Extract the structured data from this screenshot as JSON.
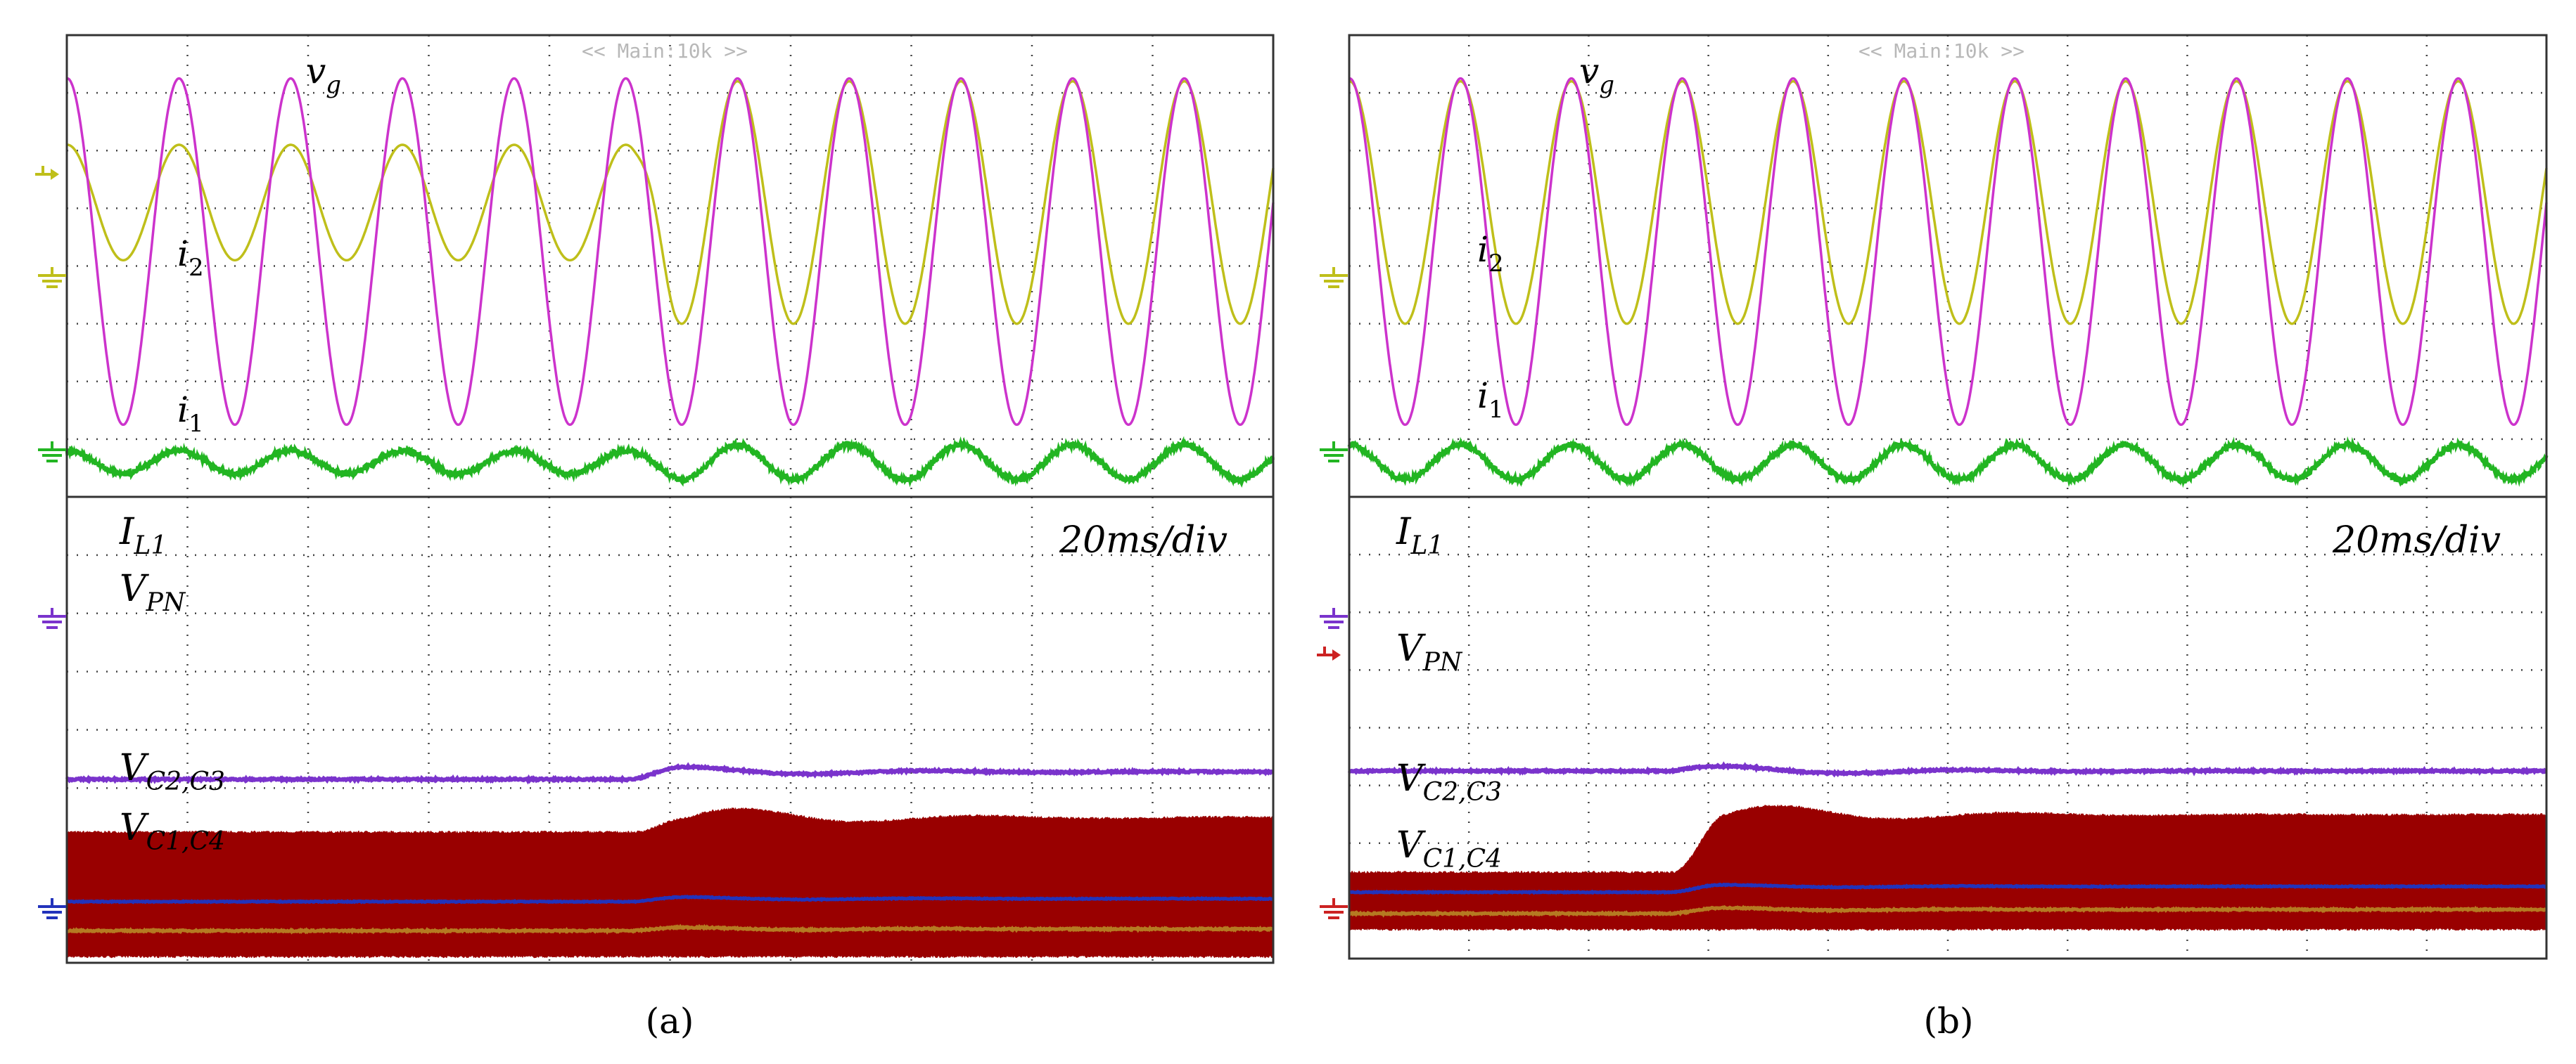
{
  "figure": {
    "panels": [
      {
        "caption": "(a)",
        "top_label": "<< Main:10k >>",
        "time_scale": "20ms/div",
        "labels": {
          "vg": {
            "base": "v",
            "sub": "g"
          },
          "i2": {
            "base": "i",
            "sub": "2"
          },
          "i1": {
            "base": "i",
            "sub": "1"
          },
          "IL1": {
            "base": "I",
            "sub": "L1"
          },
          "VPN": {
            "base": "V",
            "sub": "PN"
          },
          "VC23": {
            "base": "V",
            "sub": "C2,C3"
          },
          "VC14": {
            "base": "V",
            "sub": "C1,C4"
          }
        }
      },
      {
        "caption": "(b)",
        "top_label": "<< Main:10k >>",
        "time_scale": "20ms/div",
        "labels": {
          "vg": {
            "base": "v",
            "sub": "g"
          },
          "i2": {
            "base": "i",
            "sub": "2"
          },
          "i1": {
            "base": "i",
            "sub": "1"
          },
          "IL1": {
            "base": "I",
            "sub": "L1"
          },
          "VPN": {
            "base": "V",
            "sub": "PN"
          },
          "VC23": {
            "base": "V",
            "sub": "C2,C3"
          },
          "VC14": {
            "base": "V",
            "sub": "C1,C4"
          }
        }
      }
    ]
  },
  "chart_data": [
    {
      "type": "line",
      "title": "(a)",
      "xlabel": "time (20ms/div)",
      "x_divisions": 10,
      "y_divisions": 8,
      "colors": {
        "vg": "#cc33cc",
        "i2": "#bfbf1a",
        "i1": "#22b522",
        "IL1": "#7a33cc",
        "VPN": "#990000",
        "VC23": "#2233bb",
        "VC14": "#b57a22"
      },
      "step_time_div": 4.7,
      "series": [
        {
          "name": "vg",
          "cycles_per_div": 1.08,
          "level_div": 4.25,
          "amp_pre_div": 3.0,
          "amp_post_div": 3.0
        },
        {
          "name": "i2",
          "cycles_per_div": 1.08,
          "level_div": 5.1,
          "amp_pre_div": 1.0,
          "amp_post_div": 2.1
        },
        {
          "name": "i1",
          "cycles_per_div": 1.08,
          "level_div": 0.6,
          "amp_pre_div": 0.2,
          "amp_post_div": 0.3
        },
        {
          "name": "IL1",
          "level_pre_div": 3.15,
          "level_post_div": 3.28
        },
        {
          "name": "VPN",
          "top_pre_div": 2.25,
          "top_post_div": 2.5,
          "bottom_div": 0.1
        },
        {
          "name": "VC23",
          "level_pre_div": 1.05,
          "level_post_div": 1.1
        },
        {
          "name": "VC14",
          "level_pre_div": 0.55,
          "level_post_div": 0.58
        }
      ]
    },
    {
      "type": "line",
      "title": "(b)",
      "xlabel": "time (20ms/div)",
      "x_divisions": 10,
      "y_divisions": 8,
      "colors": {
        "vg": "#cc33cc",
        "i2": "#bfbf1a",
        "i1": "#22b522",
        "IL1": "#7a33cc",
        "VPN": "#990000",
        "VC23": "#2233bb",
        "VC14": "#b57a22"
      },
      "step_time_div": 2.7,
      "series": [
        {
          "name": "vg",
          "cycles_per_div": 1.08,
          "level_div": 4.25,
          "amp_pre_div": 3.0,
          "amp_post_div": 3.0
        },
        {
          "name": "i2",
          "cycles_per_div": 1.08,
          "level_div": 5.1,
          "amp_pre_div": 2.1,
          "amp_post_div": 2.1
        },
        {
          "name": "i1",
          "cycles_per_div": 1.08,
          "level_div": 0.6,
          "amp_pre_div": 0.3,
          "amp_post_div": 0.3
        },
        {
          "name": "IL1",
          "level_pre_div": 3.25,
          "level_post_div": 3.25
        },
        {
          "name": "VPN",
          "top_pre_div": 1.5,
          "top_post_div": 2.5,
          "bottom_div": 0.5
        },
        {
          "name": "VC23",
          "level_pre_div": 1.15,
          "level_post_div": 1.25
        },
        {
          "name": "VC14",
          "level_pre_div": 0.78,
          "level_post_div": 0.85
        }
      ]
    }
  ]
}
